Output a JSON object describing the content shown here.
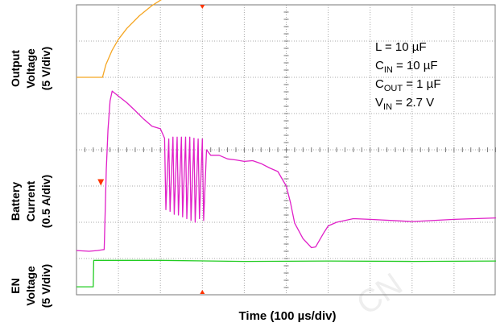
{
  "chart_data": {
    "type": "line",
    "title": "",
    "xlabel": "Time (100 µs/div)",
    "x_unit_per_div": 100,
    "x_unit": "µs",
    "x_divisions": 10,
    "y_divisions": 8,
    "grid": true,
    "colors": {
      "grid": "#a8a8a8",
      "axis": "#777777",
      "output_voltage": "#f5a623",
      "battery_current": "#e020c8",
      "en_voltage": "#22cc22",
      "marker": "#ff3300",
      "watermark": "#eeeeee"
    },
    "channel_labels": [
      {
        "id": "output",
        "lines": [
          "Output",
          "Voltage",
          "(5 V/div)"
        ]
      },
      {
        "id": "battery",
        "lines": [
          "Battery",
          "Current",
          "(0.5 A/div)"
        ]
      },
      {
        "id": "en",
        "lines": [
          "EN",
          "Voltage",
          "(5 V/div)"
        ]
      }
    ],
    "annotation": {
      "L": "L = 10 µF",
      "CIN_main": "C",
      "CIN_sub": "IN",
      "CIN_rest": " = 10 µF",
      "COUT_main": "C",
      "COUT_sub": "OUT",
      "COUT_rest": " = 1 µF",
      "VIN_main": "V",
      "VIN_sub": "IN",
      "VIN_rest": " = 2.7 V"
    },
    "series": [
      {
        "name": "Output Voltage",
        "color": "#f5a623",
        "x": [
          0,
          0.3,
          0.55,
          0.62,
          0.7,
          0.85,
          1.0,
          1.2,
          1.5,
          1.8,
          2.1,
          2.5,
          3.0,
          3.5,
          4.0,
          4.5,
          5.0,
          5.5,
          5.8,
          6.0,
          6.5,
          7.0,
          8.0,
          9.0,
          10.0
        ],
        "y": [
          6.0,
          6.0,
          6.0,
          6.0,
          6.35,
          6.75,
          7.05,
          7.35,
          7.7,
          7.98,
          8.2,
          8.45,
          8.7,
          8.95,
          9.15,
          9.35,
          9.55,
          9.7,
          9.78,
          9.78,
          9.76,
          9.76,
          9.76,
          9.75,
          9.76
        ]
      },
      {
        "name": "Battery Current",
        "color": "#e020c8",
        "x": [
          0,
          0.3,
          0.5,
          0.66,
          0.71,
          0.75,
          0.8,
          0.85,
          1.0,
          1.2,
          1.4,
          1.6,
          1.8,
          2.0,
          2.1,
          2.13,
          2.2,
          2.23,
          2.3,
          2.33,
          2.4,
          2.43,
          2.5,
          2.53,
          2.6,
          2.63,
          2.7,
          2.73,
          2.8,
          2.83,
          2.9,
          2.93,
          3.0,
          3.03,
          3.1,
          3.2,
          3.4,
          3.6,
          3.8,
          4.0,
          4.2,
          4.4,
          4.6,
          4.8,
          5.0,
          5.1,
          5.2,
          5.4,
          5.6,
          5.7,
          5.8,
          5.9,
          6.0,
          6.2,
          6.4,
          6.6,
          7.0,
          8.0,
          9.0,
          10.0
        ],
        "y": [
          1.22,
          1.2,
          1.22,
          1.25,
          3.45,
          4.55,
          5.35,
          5.62,
          5.48,
          5.3,
          5.08,
          4.85,
          4.65,
          4.58,
          4.32,
          2.35,
          4.3,
          2.3,
          4.35,
          2.22,
          4.35,
          2.2,
          4.35,
          2.15,
          4.35,
          2.1,
          4.35,
          2.05,
          4.32,
          2.0,
          4.3,
          2.1,
          4.3,
          2.05,
          4.0,
          3.85,
          3.85,
          3.75,
          3.72,
          3.68,
          3.7,
          3.62,
          3.5,
          3.4,
          3.0,
          2.55,
          1.98,
          1.55,
          1.3,
          1.32,
          1.52,
          1.72,
          1.9,
          2.0,
          2.05,
          2.1,
          2.08,
          2.02,
          2.08,
          2.12
        ]
      },
      {
        "name": "EN Voltage",
        "color": "#22cc22",
        "x": [
          0,
          0.1,
          0.4,
          0.41,
          0.8,
          2.0,
          4.0,
          6.0,
          8.0,
          10.0
        ],
        "y": [
          0.22,
          0.22,
          0.22,
          0.95,
          0.95,
          0.95,
          0.92,
          0.93,
          0.92,
          0.93
        ]
      }
    ],
    "markers": [
      {
        "name": "trigger-top",
        "x": 3.0,
        "y": 8.0
      },
      {
        "name": "trigger-bottom",
        "x": 3.0,
        "y": 0.0
      },
      {
        "name": "level-left",
        "x": 0.58,
        "y": 3.1
      }
    ]
  },
  "watermark": "CN"
}
